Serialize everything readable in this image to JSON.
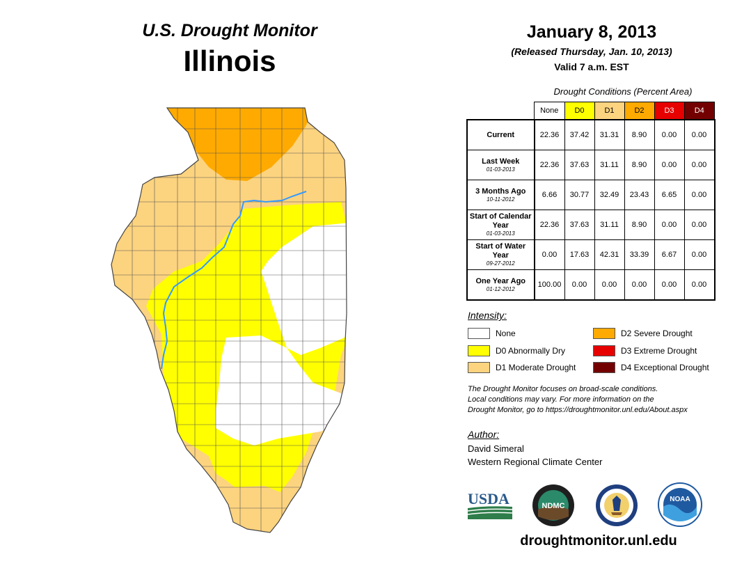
{
  "header": {
    "subtitle": "U.S. Drought Monitor",
    "state": "Illinois"
  },
  "date_block": {
    "date": "January 8, 2013",
    "released": "(Released Thursday, Jan. 10, 2013)",
    "valid": "Valid 7 a.m. EST"
  },
  "table": {
    "title": "Drought Conditions (Percent Area)",
    "columns": [
      {
        "label": "None",
        "color": "#ffffff"
      },
      {
        "label": "D0",
        "color": "#ffff00"
      },
      {
        "label": "D1",
        "color": "#fcd37f"
      },
      {
        "label": "D2",
        "color": "#ffaa00"
      },
      {
        "label": "D3",
        "color": "#e60000"
      },
      {
        "label": "D4",
        "color": "#730000"
      }
    ],
    "rows": [
      {
        "label": "Current",
        "sub": "",
        "values": [
          "22.36",
          "37.42",
          "31.31",
          "8.90",
          "0.00",
          "0.00"
        ]
      },
      {
        "label": "Last Week",
        "sub": "01-03-2013",
        "values": [
          "22.36",
          "37.63",
          "31.11",
          "8.90",
          "0.00",
          "0.00"
        ]
      },
      {
        "label": "3 Months Ago",
        "sub": "10-11-2012",
        "values": [
          "6.66",
          "30.77",
          "32.49",
          "23.43",
          "6.65",
          "0.00"
        ]
      },
      {
        "label": "Start of Calendar Year",
        "sub": "01-03-2013",
        "values": [
          "22.36",
          "37.63",
          "31.11",
          "8.90",
          "0.00",
          "0.00"
        ]
      },
      {
        "label": "Start of Water Year",
        "sub": "09-27-2012",
        "values": [
          "0.00",
          "17.63",
          "42.31",
          "33.39",
          "6.67",
          "0.00"
        ]
      },
      {
        "label": "One Year Ago",
        "sub": "01-12-2012",
        "values": [
          "100.00",
          "0.00",
          "0.00",
          "0.00",
          "0.00",
          "0.00"
        ]
      }
    ]
  },
  "legend": {
    "title": "Intensity:",
    "items": [
      {
        "label": "None",
        "color": "#ffffff"
      },
      {
        "label": "D0 Abnormally Dry",
        "color": "#ffff00"
      },
      {
        "label": "D1 Moderate Drought",
        "color": "#fcd37f"
      },
      {
        "label": "D2 Severe Drought",
        "color": "#ffaa00"
      },
      {
        "label": "D3 Extreme Drought",
        "color": "#e60000"
      },
      {
        "label": "D4 Exceptional Drought",
        "color": "#730000"
      }
    ]
  },
  "note": {
    "line1": "The Drought Monitor focuses on broad-scale conditions.",
    "line2": "Local conditions may vary. For more information on the",
    "line3": "Drought Monitor, go to https://droughtmonitor.unl.edu/About.aspx"
  },
  "author": {
    "title": "Author:",
    "name": "David Simeral",
    "org": "Western Regional Climate Center"
  },
  "logos": {
    "usda": "USDA",
    "ndmc": "NDMC",
    "noaa": "NOAA"
  },
  "footer": {
    "url": "droughtmonitor.unl.edu"
  },
  "colors": {
    "none": "#ffffff",
    "d0": "#ffff00",
    "d1": "#fcd37f",
    "d2": "#ffaa00",
    "river": "#3399ff"
  }
}
